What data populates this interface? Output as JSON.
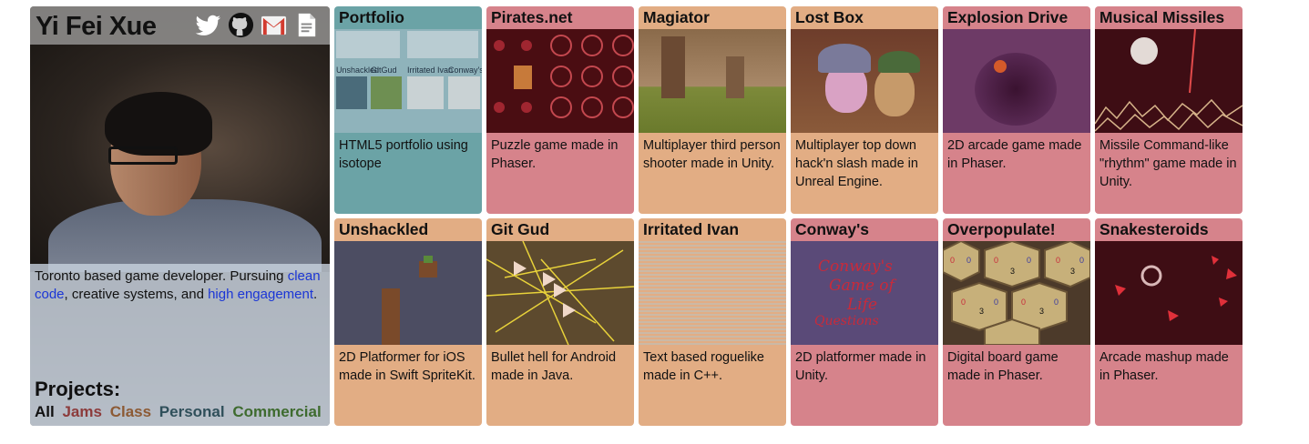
{
  "profile": {
    "name": "Yi Fei Xue",
    "links": [
      {
        "icon": "twitter-icon"
      },
      {
        "icon": "github-icon"
      },
      {
        "icon": "gmail-icon"
      },
      {
        "icon": "document-icon"
      }
    ],
    "bio_prefix": "Toronto based game developer. Pursuing ",
    "bio_link1": "clean code",
    "bio_mid": ", creative systems, and ",
    "bio_link2": "high engagement",
    "bio_suffix": ".",
    "projects_heading": "Projects:",
    "filters": [
      {
        "label": "All",
        "color": "#111111"
      },
      {
        "label": "Jams",
        "color": "#8c3b3b"
      },
      {
        "label": "Class",
        "color": "#8c5a34"
      },
      {
        "label": "Personal",
        "color": "#2f4f5a"
      },
      {
        "label": "Commercial",
        "color": "#3e6b2f"
      }
    ]
  },
  "colors": {
    "teal": "#6ba3a6",
    "red": "#d6838b",
    "peach": "#e2ad84",
    "link": "#1b36d6"
  },
  "projects": [
    {
      "title": "Portfolio",
      "desc": "HTML5 portfolio using isotope",
      "color": "teal"
    },
    {
      "title": "Pirates.net",
      "desc": "Puzzle game made in Phaser.",
      "color": "red"
    },
    {
      "title": "Magiator",
      "desc": "Multiplayer third person shooter made in Unity.",
      "color": "peach"
    },
    {
      "title": "Lost Box",
      "desc": "Multiplayer top down hack'n slash made in Unreal Engine.",
      "color": "peach"
    },
    {
      "title": "Explosion Drive",
      "desc": "2D arcade game made in Phaser.",
      "color": "red"
    },
    {
      "title": "Musical Missiles",
      "desc": "Missile Command-like \"rhythm\" game made in Unity.",
      "color": "red"
    },
    {
      "title": "Unshackled",
      "desc": "2D Platformer for iOS made in Swift SpriteKit.",
      "color": "peach"
    },
    {
      "title": "Git Gud",
      "desc": "Bullet hell for Android made in Java.",
      "color": "peach"
    },
    {
      "title": "Irritated Ivan",
      "desc": "Text based roguelike made in C++.",
      "color": "peach"
    },
    {
      "title": "Conway's",
      "desc": "2D platformer made in Unity.",
      "color": "red"
    },
    {
      "title": "Overpopulate!",
      "desc": "Digital board game made in Phaser.",
      "color": "red"
    },
    {
      "title": "Snakesteroids",
      "desc": "Arcade mashup made in Phaser.",
      "color": "red"
    }
  ],
  "thumbs": {
    "portfolio": [
      "Unshackled",
      "GitGud",
      "Irritated Ivan",
      "Conway's"
    ],
    "conway": [
      "Conway's",
      "Game of",
      "Life",
      "Questions"
    ],
    "overpopulate": [
      "0",
      "0",
      "0",
      "3",
      "0",
      "3",
      "0",
      "0",
      "3",
      "0",
      "0",
      "3",
      "0",
      "0"
    ]
  }
}
